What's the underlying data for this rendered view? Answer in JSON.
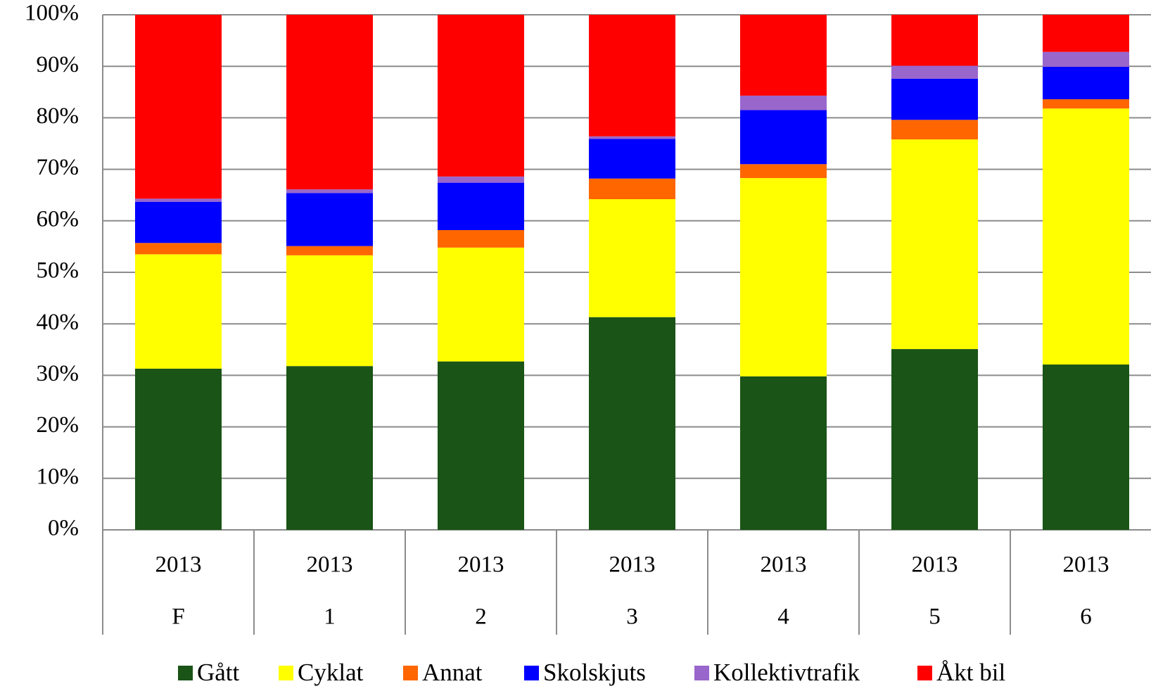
{
  "chart_data": {
    "type": "bar",
    "stacked": true,
    "categories": [
      [
        "2013",
        "F"
      ],
      [
        "2013",
        "1"
      ],
      [
        "2013",
        "2"
      ],
      [
        "2013",
        "3"
      ],
      [
        "2013",
        "4"
      ],
      [
        "2013",
        "5"
      ],
      [
        "2013",
        "6"
      ]
    ],
    "series": [
      {
        "name": "Gått",
        "color": "#1a5416",
        "values": [
          31.3,
          31.8,
          32.7,
          41.3,
          29.8,
          35.1,
          32.1
        ]
      },
      {
        "name": "Cyklat",
        "color": "#ffff00",
        "values": [
          22.2,
          21.5,
          22.1,
          22.9,
          38.5,
          40.7,
          49.7
        ]
      },
      {
        "name": "Annat",
        "color": "#ff6600",
        "values": [
          2.2,
          1.8,
          3.4,
          4.0,
          2.7,
          3.8,
          1.8
        ]
      },
      {
        "name": "Skolskjuts",
        "color": "#0000ff",
        "values": [
          8.0,
          10.3,
          9.2,
          7.7,
          10.5,
          8.0,
          6.3
        ]
      },
      {
        "name": "Kollektivtrafik",
        "color": "#9966cc",
        "values": [
          0.6,
          0.7,
          1.2,
          0.5,
          2.8,
          2.5,
          2.9
        ]
      },
      {
        "name": "Åkt bil",
        "color": "#ff0000",
        "values": [
          35.7,
          33.9,
          31.4,
          23.6,
          15.7,
          9.9,
          7.2
        ]
      }
    ],
    "ylim": [
      0,
      100
    ],
    "yticks": [
      {
        "value": 0,
        "label": "0%"
      },
      {
        "value": 10,
        "label": "10%"
      },
      {
        "value": 20,
        "label": "20%"
      },
      {
        "value": 30,
        "label": "30%"
      },
      {
        "value": 40,
        "label": "40%"
      },
      {
        "value": 50,
        "label": "50%"
      },
      {
        "value": 60,
        "label": "60%"
      },
      {
        "value": 70,
        "label": "70%"
      },
      {
        "value": 80,
        "label": "80%"
      },
      {
        "value": 90,
        "label": "90%"
      },
      {
        "value": 100,
        "label": "100%"
      }
    ],
    "grid": true,
    "legend": "bottom"
  }
}
